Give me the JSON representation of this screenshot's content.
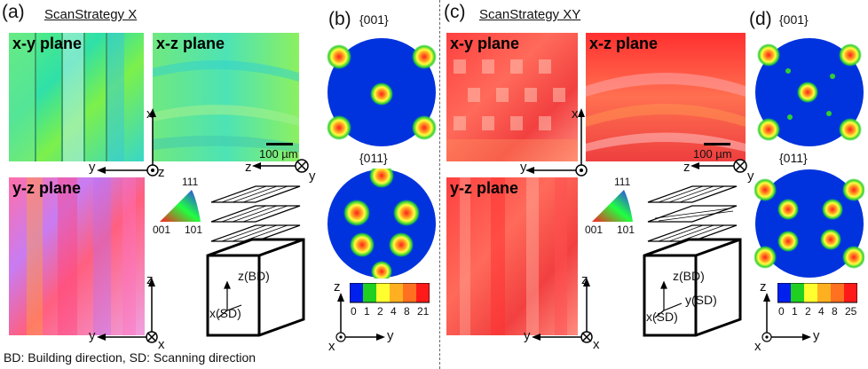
{
  "panels": {
    "a": {
      "label": "(a)",
      "strategy": "ScanStrategy X"
    },
    "b": {
      "label": "(b)"
    },
    "c": {
      "label": "(c)",
      "strategy": "ScanStrategy XY"
    },
    "d": {
      "label": "(d)"
    }
  },
  "maps": {
    "xy": "x-y plane",
    "xz": "x-z plane",
    "yz": "y-z plane"
  },
  "scale": "100 µm",
  "axes": {
    "x": "x",
    "y": "y",
    "z": "z"
  },
  "ipf": {
    "c001": "001",
    "c101": "101",
    "c111": "111"
  },
  "pole_figures": {
    "p001": "{001}",
    "p011": "{011}"
  },
  "cube": {
    "bd": "z(BD)",
    "sd": "x(SD)",
    "ysd": "y(SD)"
  },
  "colorbar_b": [
    "0",
    "1",
    "2",
    "4",
    "8",
    "21"
  ],
  "colorbar_d": [
    "0",
    "1",
    "2",
    "4",
    "8",
    "25"
  ],
  "footer": "BD: Building direction, SD: Scanning direction"
}
